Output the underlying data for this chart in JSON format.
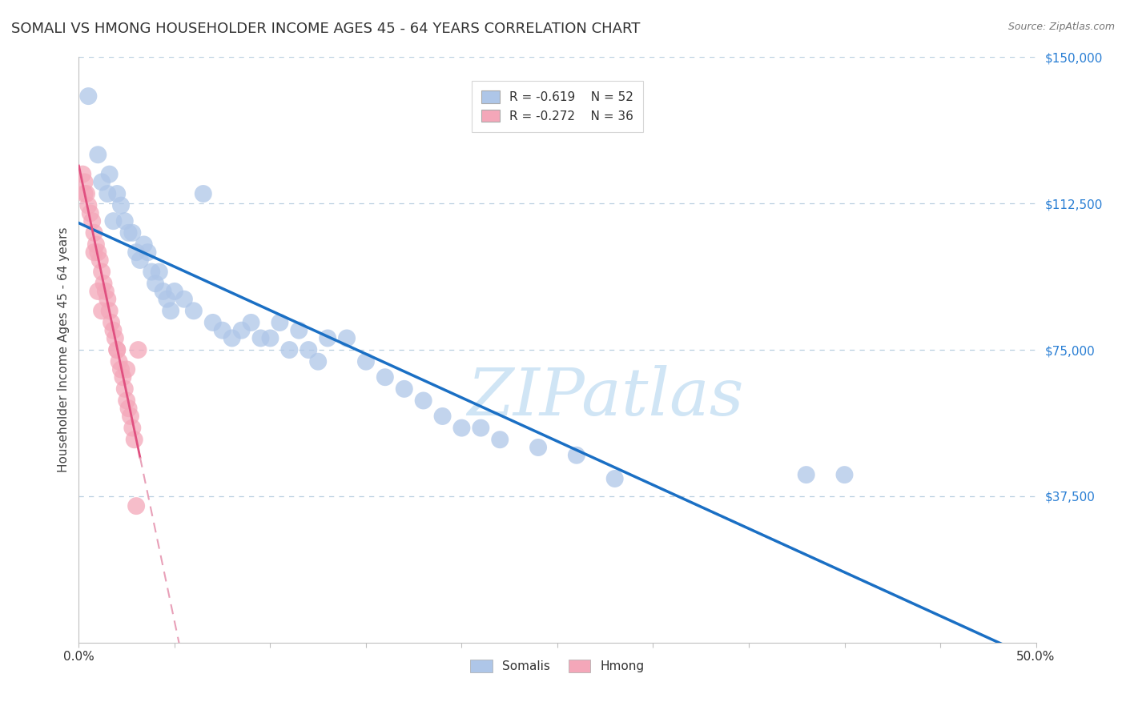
{
  "title": "SOMALI VS HMONG HOUSEHOLDER INCOME AGES 45 - 64 YEARS CORRELATION CHART",
  "source": "Source: ZipAtlas.com",
  "ylabel": "Householder Income Ages 45 - 64 years",
  "xlim": [
    0.0,
    0.5
  ],
  "ylim": [
    0,
    150000
  ],
  "yticks": [
    37500,
    75000,
    112500,
    150000
  ],
  "ytick_labels": [
    "$37,500",
    "$75,000",
    "$112,500",
    "$150,000"
  ],
  "xtick_positions": [
    0.0,
    0.05,
    0.1,
    0.15,
    0.2,
    0.25,
    0.3,
    0.35,
    0.4,
    0.45,
    0.5
  ],
  "somali_R": -0.619,
  "somali_N": 52,
  "hmong_R": -0.272,
  "hmong_N": 36,
  "somali_color": "#aec6e8",
  "hmong_color": "#f4a7b9",
  "somali_line_color": "#1a6fc4",
  "hmong_line_solid_color": "#e05080",
  "hmong_line_dash_color": "#e8a0b8",
  "background_color": "#ffffff",
  "grid_color": "#b8cfe0",
  "watermark": "ZIPatlas",
  "watermark_color": "#d0e5f5",
  "title_fontsize": 13,
  "axis_label_fontsize": 11,
  "tick_fontsize": 11,
  "legend_fontsize": 11,
  "somali_x": [
    0.005,
    0.01,
    0.012,
    0.015,
    0.016,
    0.018,
    0.02,
    0.022,
    0.024,
    0.026,
    0.028,
    0.03,
    0.032,
    0.034,
    0.036,
    0.038,
    0.04,
    0.042,
    0.044,
    0.046,
    0.048,
    0.05,
    0.055,
    0.06,
    0.065,
    0.07,
    0.075,
    0.08,
    0.085,
    0.09,
    0.095,
    0.1,
    0.105,
    0.11,
    0.115,
    0.12,
    0.125,
    0.13,
    0.14,
    0.15,
    0.16,
    0.17,
    0.18,
    0.19,
    0.2,
    0.21,
    0.22,
    0.24,
    0.26,
    0.28,
    0.38,
    0.4
  ],
  "somali_y": [
    140000,
    125000,
    118000,
    115000,
    120000,
    108000,
    115000,
    112000,
    108000,
    105000,
    105000,
    100000,
    98000,
    102000,
    100000,
    95000,
    92000,
    95000,
    90000,
    88000,
    85000,
    90000,
    88000,
    85000,
    115000,
    82000,
    80000,
    78000,
    80000,
    82000,
    78000,
    78000,
    82000,
    75000,
    80000,
    75000,
    72000,
    78000,
    78000,
    72000,
    68000,
    65000,
    62000,
    58000,
    55000,
    55000,
    52000,
    50000,
    48000,
    42000,
    43000,
    43000
  ],
  "hmong_x": [
    0.002,
    0.003,
    0.004,
    0.005,
    0.006,
    0.007,
    0.008,
    0.009,
    0.01,
    0.011,
    0.012,
    0.013,
    0.014,
    0.015,
    0.016,
    0.017,
    0.018,
    0.019,
    0.02,
    0.021,
    0.022,
    0.023,
    0.024,
    0.025,
    0.026,
    0.027,
    0.028,
    0.029,
    0.03,
    0.031,
    0.003,
    0.008,
    0.01,
    0.012,
    0.02,
    0.025
  ],
  "hmong_y": [
    120000,
    118000,
    115000,
    112000,
    110000,
    108000,
    105000,
    102000,
    100000,
    98000,
    95000,
    92000,
    90000,
    88000,
    85000,
    82000,
    80000,
    78000,
    75000,
    72000,
    70000,
    68000,
    65000,
    62000,
    60000,
    58000,
    55000,
    52000,
    35000,
    75000,
    115000,
    100000,
    90000,
    85000,
    75000,
    70000
  ]
}
